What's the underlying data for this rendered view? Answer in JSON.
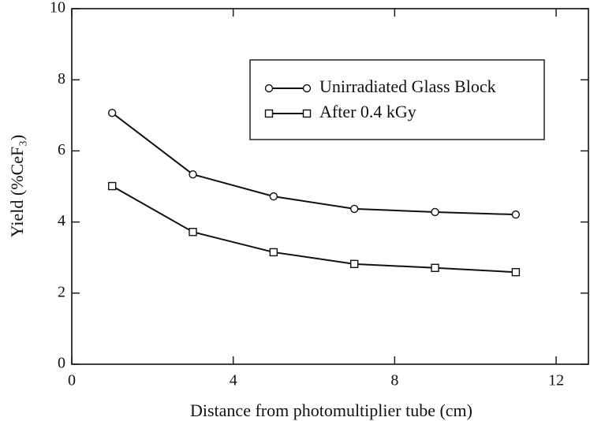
{
  "chart_data": {
    "type": "line",
    "xlabel": "Distance from photomultiplier tube (cm)",
    "ylabel": "Yield (%CeF₃)",
    "x": [
      1,
      3,
      5,
      7,
      9,
      11
    ],
    "series": [
      {
        "name": "Unirradiated Glass Block",
        "color": "#111111",
        "marker": "circle",
        "values": [
          7.07,
          5.34,
          4.72,
          4.37,
          4.28,
          4.21
        ]
      },
      {
        "name": "After  0.4 kGy",
        "color": "#111111",
        "marker": "square",
        "values": [
          5.01,
          3.72,
          3.15,
          2.82,
          2.71,
          2.59
        ]
      }
    ],
    "xlim": [
      0,
      12.8
    ],
    "xticks": [
      0,
      4,
      8,
      12
    ],
    "ylim": [
      0,
      10
    ],
    "yticks": [
      0,
      2,
      4,
      6,
      8,
      10
    ],
    "legend": "upper right",
    "grid": false
  }
}
